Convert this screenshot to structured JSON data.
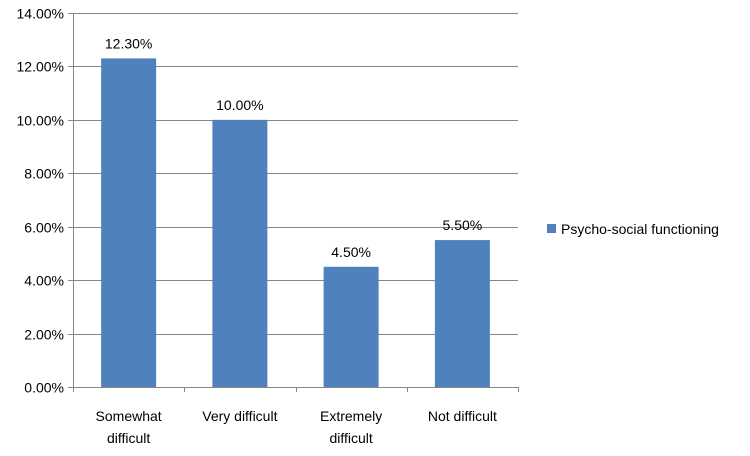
{
  "chart_data": {
    "type": "bar",
    "categories": [
      [
        "Somewhat",
        "difficult"
      ],
      [
        "Very difficult"
      ],
      [
        "Extremely",
        "difficult"
      ],
      [
        "Not difficult"
      ]
    ],
    "series": [
      {
        "name": "Psycho-social functioning",
        "values": [
          12.3,
          10.0,
          4.5,
          5.5
        ],
        "data_labels": [
          "12.30%",
          "10.00%",
          "4.50%",
          "5.50%"
        ],
        "color": "#4F81BD"
      }
    ],
    "ylim": [
      0,
      14
    ],
    "yticks": [
      0,
      2,
      4,
      6,
      8,
      10,
      12,
      14
    ],
    "ytick_labels": [
      "0.00%",
      "2.00%",
      "4.00%",
      "6.00%",
      "8.00%",
      "10.00%",
      "12.00%",
      "14.00%"
    ],
    "grid": true,
    "legend_position": "right",
    "gridline_color": "#868686"
  }
}
